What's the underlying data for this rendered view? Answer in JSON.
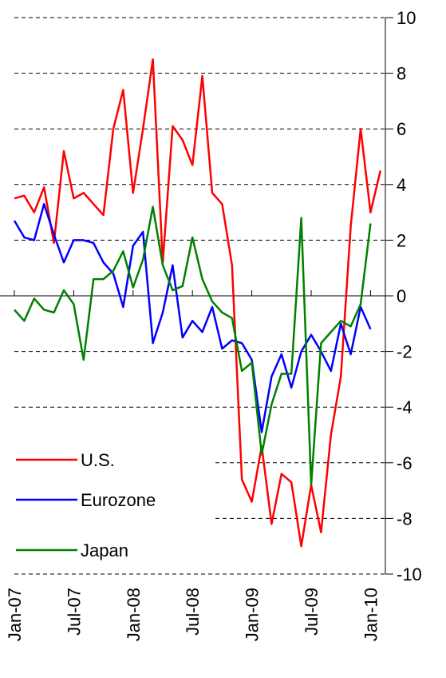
{
  "chart_data": {
    "type": "line",
    "categories": [
      "Jan-07",
      null,
      null,
      null,
      null,
      null,
      "Jul-07",
      null,
      null,
      null,
      null,
      null,
      "Jan-08",
      null,
      null,
      null,
      null,
      null,
      "Jul-08",
      null,
      null,
      null,
      null,
      null,
      "Jan-09",
      null,
      null,
      null,
      null,
      null,
      "Jul-09",
      null,
      null,
      null,
      null,
      null,
      "Jan-10",
      null
    ],
    "series": [
      {
        "name": "U.S.",
        "color": "#ff0000",
        "values": [
          3.5,
          3.6,
          3.0,
          3.9,
          1.9,
          5.2,
          3.5,
          3.7,
          3.3,
          2.9,
          6.0,
          7.4,
          3.7,
          6.0,
          8.5,
          1.2,
          6.1,
          5.6,
          4.7,
          7.9,
          3.7,
          3.3,
          1.1,
          -6.6,
          -7.4,
          -5.4,
          -8.2,
          -6.4,
          -6.7,
          -9.0,
          -6.8,
          -8.5,
          -5.0,
          -2.9,
          2.5,
          6.0,
          3.0,
          4.5
        ]
      },
      {
        "name": "Eurozone",
        "color": "#0000ff",
        "values": [
          2.7,
          2.1,
          2.0,
          3.3,
          2.2,
          1.2,
          2.0,
          2.0,
          1.9,
          1.2,
          0.8,
          -0.4,
          1.8,
          2.3,
          -1.7,
          -0.6,
          1.1,
          -1.5,
          -0.9,
          -1.3,
          -0.4,
          -1.9,
          -1.6,
          -1.7,
          -2.3,
          -4.9,
          -2.9,
          -2.1,
          -3.3,
          -2.0,
          -1.4,
          -2.0,
          -2.7,
          -1.0,
          -2.1,
          -0.4,
          -1.2,
          null
        ]
      },
      {
        "name": "Japan",
        "color": "#008000",
        "values": [
          -0.5,
          -0.9,
          -0.1,
          -0.5,
          -0.6,
          0.2,
          -0.3,
          -2.3,
          0.6,
          0.6,
          0.9,
          1.6,
          0.3,
          1.3,
          3.2,
          1.1,
          0.2,
          0.35,
          2.1,
          0.6,
          -0.2,
          -0.6,
          -0.8,
          -2.7,
          -2.4,
          -5.7,
          -3.9,
          -2.8,
          -2.8,
          2.8,
          -6.8,
          -1.7,
          -1.3,
          -0.9,
          -1.1,
          -0.3,
          2.6,
          null
        ]
      }
    ],
    "ylim": [
      -10,
      10
    ],
    "yticks": [
      -10,
      -8,
      -6,
      -4,
      -2,
      0,
      2,
      4,
      6,
      8,
      10
    ],
    "grid": true,
    "legend": "lower left"
  }
}
